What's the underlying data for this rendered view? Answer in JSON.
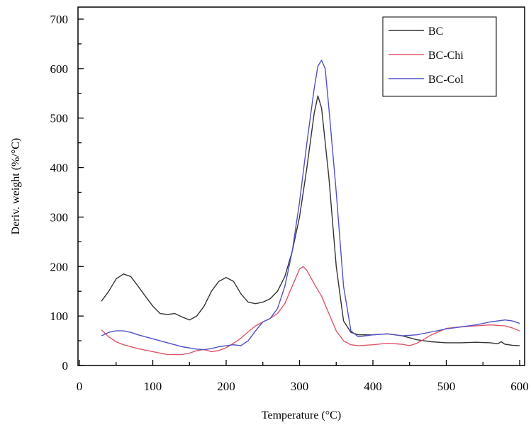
{
  "chart_data": {
    "type": "line",
    "title": "",
    "xlabel": "Temperature (°C)",
    "ylabel": "Deriv. weight (%/°C)",
    "xlim": [
      0,
      600
    ],
    "ylim": [
      0,
      700
    ],
    "x_ticks": [
      0,
      100,
      200,
      300,
      400,
      500,
      600
    ],
    "y_ticks": [
      0,
      100,
      200,
      300,
      400,
      500,
      600,
      700
    ],
    "grid": false,
    "legend_position": "top-right",
    "series": [
      {
        "name": "BC",
        "color": "#333333",
        "points": [
          [
            30,
            130
          ],
          [
            40,
            150
          ],
          [
            50,
            175
          ],
          [
            60,
            185
          ],
          [
            70,
            180
          ],
          [
            80,
            160
          ],
          [
            90,
            140
          ],
          [
            100,
            120
          ],
          [
            110,
            105
          ],
          [
            120,
            103
          ],
          [
            130,
            105
          ],
          [
            140,
            98
          ],
          [
            150,
            92
          ],
          [
            160,
            100
          ],
          [
            170,
            120
          ],
          [
            180,
            150
          ],
          [
            190,
            170
          ],
          [
            200,
            178
          ],
          [
            210,
            170
          ],
          [
            220,
            145
          ],
          [
            230,
            128
          ],
          [
            240,
            125
          ],
          [
            250,
            128
          ],
          [
            260,
            135
          ],
          [
            270,
            150
          ],
          [
            280,
            180
          ],
          [
            290,
            230
          ],
          [
            300,
            300
          ],
          [
            310,
            400
          ],
          [
            320,
            510
          ],
          [
            325,
            545
          ],
          [
            330,
            520
          ],
          [
            340,
            380
          ],
          [
            350,
            200
          ],
          [
            360,
            90
          ],
          [
            370,
            67
          ],
          [
            380,
            62
          ],
          [
            400,
            62
          ],
          [
            420,
            64
          ],
          [
            440,
            60
          ],
          [
            460,
            52
          ],
          [
            480,
            48
          ],
          [
            500,
            46
          ],
          [
            520,
            46
          ],
          [
            540,
            47
          ],
          [
            560,
            46
          ],
          [
            570,
            44
          ],
          [
            575,
            48
          ],
          [
            580,
            43
          ],
          [
            590,
            41
          ],
          [
            600,
            40
          ]
        ]
      },
      {
        "name": "BC-Chi",
        "color": "#e0556a",
        "points": [
          [
            30,
            72
          ],
          [
            40,
            58
          ],
          [
            50,
            48
          ],
          [
            60,
            42
          ],
          [
            80,
            34
          ],
          [
            100,
            28
          ],
          [
            120,
            22
          ],
          [
            140,
            22
          ],
          [
            150,
            25
          ],
          [
            160,
            30
          ],
          [
            170,
            32
          ],
          [
            180,
            28
          ],
          [
            190,
            30
          ],
          [
            200,
            36
          ],
          [
            210,
            45
          ],
          [
            220,
            55
          ],
          [
            230,
            68
          ],
          [
            240,
            80
          ],
          [
            250,
            88
          ],
          [
            260,
            95
          ],
          [
            270,
            105
          ],
          [
            280,
            125
          ],
          [
            290,
            160
          ],
          [
            300,
            195
          ],
          [
            305,
            200
          ],
          [
            310,
            192
          ],
          [
            320,
            165
          ],
          [
            330,
            140
          ],
          [
            340,
            105
          ],
          [
            350,
            70
          ],
          [
            360,
            50
          ],
          [
            370,
            42
          ],
          [
            380,
            40
          ],
          [
            400,
            42
          ],
          [
            420,
            45
          ],
          [
            440,
            43
          ],
          [
            450,
            40
          ],
          [
            460,
            45
          ],
          [
            480,
            62
          ],
          [
            500,
            75
          ],
          [
            520,
            78
          ],
          [
            540,
            80
          ],
          [
            560,
            82
          ],
          [
            580,
            80
          ],
          [
            590,
            76
          ],
          [
            600,
            70
          ]
        ]
      },
      {
        "name": "BC-Col",
        "color": "#5050c8",
        "points": [
          [
            30,
            60
          ],
          [
            40,
            67
          ],
          [
            50,
            70
          ],
          [
            60,
            70
          ],
          [
            70,
            67
          ],
          [
            80,
            62
          ],
          [
            100,
            54
          ],
          [
            120,
            46
          ],
          [
            140,
            38
          ],
          [
            160,
            33
          ],
          [
            170,
            32
          ],
          [
            180,
            34
          ],
          [
            190,
            38
          ],
          [
            200,
            40
          ],
          [
            210,
            42
          ],
          [
            220,
            40
          ],
          [
            230,
            50
          ],
          [
            240,
            70
          ],
          [
            250,
            88
          ],
          [
            260,
            95
          ],
          [
            270,
            115
          ],
          [
            280,
            160
          ],
          [
            290,
            230
          ],
          [
            300,
            330
          ],
          [
            310,
            450
          ],
          [
            320,
            560
          ],
          [
            325,
            605
          ],
          [
            330,
            617
          ],
          [
            335,
            600
          ],
          [
            340,
            520
          ],
          [
            350,
            350
          ],
          [
            360,
            160
          ],
          [
            370,
            70
          ],
          [
            380,
            58
          ],
          [
            400,
            62
          ],
          [
            420,
            64
          ],
          [
            440,
            60
          ],
          [
            460,
            62
          ],
          [
            480,
            68
          ],
          [
            500,
            74
          ],
          [
            520,
            78
          ],
          [
            540,
            82
          ],
          [
            560,
            88
          ],
          [
            580,
            92
          ],
          [
            590,
            90
          ],
          [
            600,
            85
          ]
        ]
      }
    ]
  }
}
